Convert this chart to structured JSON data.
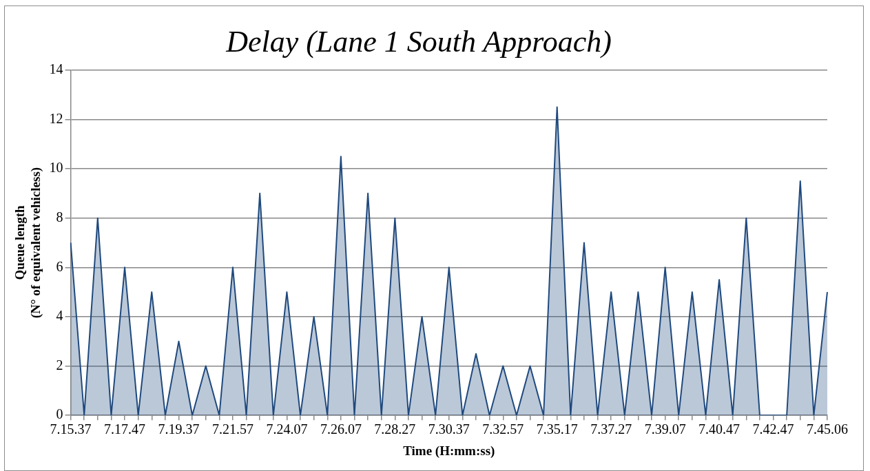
{
  "chart_data": {
    "type": "area",
    "title": "Delay (Lane 1 South Approach)",
    "xlabel": "Time (H:mm:ss)",
    "ylabel": "Queue length\n(N° of equivalent vehicless)",
    "categories": [
      "7.15.37",
      null,
      null,
      null,
      "7.17.47",
      null,
      null,
      null,
      "7.19.37",
      null,
      null,
      null,
      "7.21.57",
      null,
      null,
      null,
      "7.24.07",
      null,
      null,
      null,
      "7.26.07",
      null,
      null,
      null,
      "7.28.27",
      null,
      null,
      null,
      "7.30.37",
      null,
      null,
      null,
      "7.32.57",
      null,
      null,
      null,
      "7.35.17",
      null,
      null,
      null,
      "7.37.27",
      null,
      null,
      null,
      "7.39.07",
      null,
      null,
      null,
      "7.40.47",
      null,
      null,
      null,
      "7.42.47",
      null,
      null,
      null,
      "7.45.06"
    ],
    "series": [
      {
        "color": "#1f497d",
        "values": [
          7,
          0,
          8,
          0,
          6,
          0,
          5,
          0,
          3,
          0,
          2,
          0,
          6,
          0,
          9,
          0,
          5,
          0,
          4,
          0,
          10.5,
          0,
          9,
          0,
          8,
          0,
          4,
          0,
          6,
          0,
          2.5,
          0,
          2,
          0,
          2,
          0,
          12.5,
          0,
          7,
          0,
          5,
          0,
          5,
          0,
          6,
          0,
          5,
          0,
          5.5,
          0,
          8,
          0,
          0,
          0,
          9.5,
          0,
          5
        ]
      }
    ],
    "ylim": [
      0,
      14
    ],
    "yticks": [
      0,
      2,
      4,
      6,
      8,
      10,
      12,
      14
    ],
    "grid": "y",
    "legend": false,
    "marker": "none"
  }
}
